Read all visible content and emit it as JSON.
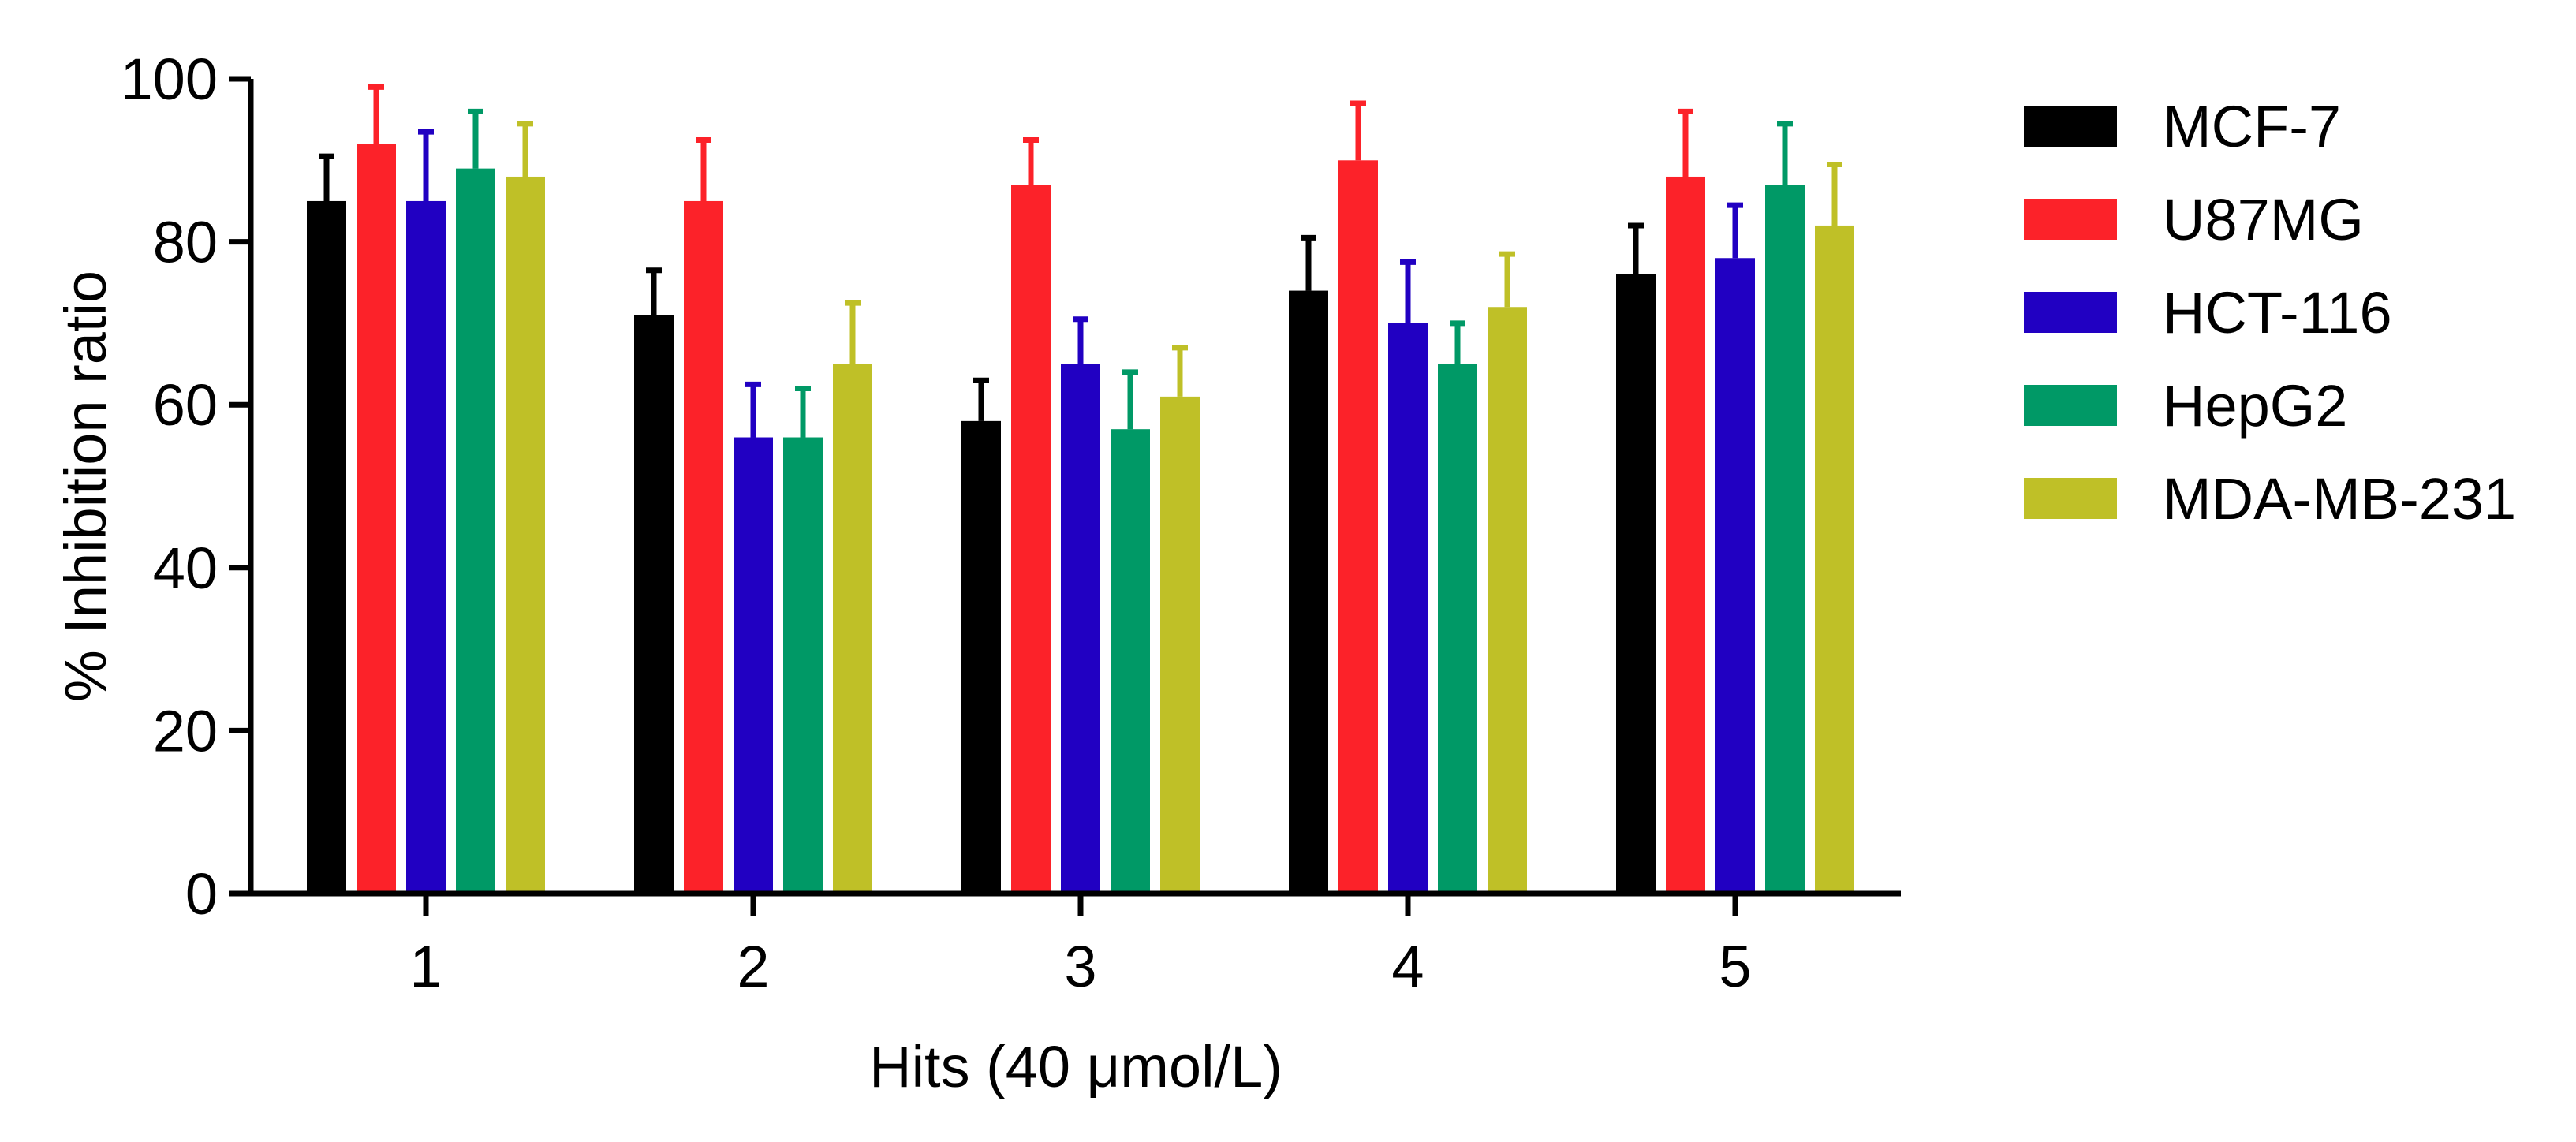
{
  "chart_data": {
    "type": "bar",
    "title": "",
    "xlabel": "Hits (40 μmol/L)",
    "ylabel": "% Inhibition ratio",
    "categories": [
      "1",
      "2",
      "3",
      "4",
      "5"
    ],
    "ylim": [
      0,
      100
    ],
    "yticks": [
      0,
      20,
      40,
      60,
      80,
      100
    ],
    "y_tick_labels": [
      "0",
      "20",
      "40",
      "60",
      "80",
      "100"
    ],
    "grid": false,
    "legend_position": "right",
    "error_bars": "upper",
    "series": [
      {
        "name": "MCF-7",
        "color": "#000000",
        "values": [
          85,
          71,
          58,
          74,
          76
        ],
        "errors": [
          5.5,
          5.5,
          5,
          6.5,
          6
        ]
      },
      {
        "name": "U87MG",
        "color": "#fc2229",
        "values": [
          92,
          85,
          87,
          90,
          88
        ],
        "errors": [
          7,
          7.5,
          5.5,
          7,
          8
        ]
      },
      {
        "name": "HCT-116",
        "color": "#2100c2",
        "values": [
          85,
          56,
          65,
          70,
          78
        ],
        "errors": [
          8.5,
          6.5,
          5.5,
          7.5,
          6.5
        ]
      },
      {
        "name": "HepG2",
        "color": "#009966",
        "values": [
          89,
          56,
          57,
          65,
          87
        ],
        "errors": [
          7,
          6,
          7,
          5,
          7.5
        ]
      },
      {
        "name": "MDA-MB-231",
        "color": "#bfc027",
        "values": [
          88,
          65,
          61,
          72,
          82
        ],
        "errors": [
          6.5,
          7.5,
          6,
          6.5,
          7.5
        ]
      }
    ]
  }
}
